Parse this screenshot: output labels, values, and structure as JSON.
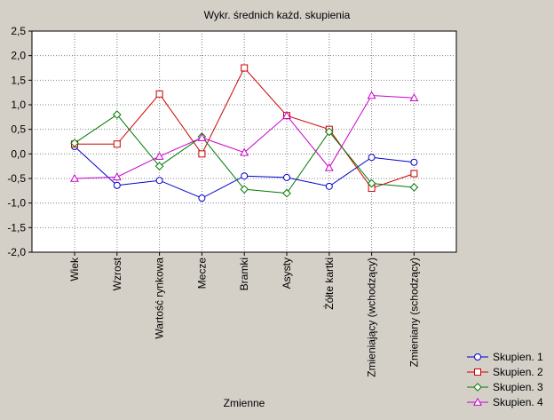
{
  "chart_data": {
    "type": "line",
    "title": "Wykr. średnich każd. skupienia",
    "xlabel": "Zmienne",
    "ylabel": "",
    "ylim": [
      -2.0,
      2.5
    ],
    "yticks": [
      2.5,
      2.0,
      1.5,
      1.0,
      0.5,
      0.0,
      -0.5,
      -1.0,
      -1.5,
      -2.0
    ],
    "ytick_labels": [
      "2,5",
      "2,0",
      "1,5",
      "1,0",
      "0,5",
      "0,0",
      "-0,5",
      "-1,0",
      "-1,5",
      "-2,0"
    ],
    "grid": true,
    "legend_position": "bottom-right",
    "categories": [
      "Wiek",
      "Wzrost",
      "Wartość rynkowa",
      "Mecze",
      "Bramki",
      "Asysty",
      "Żółte kartki",
      "Zmieniający (wchodzący)",
      "Zmieniany (schodzący)"
    ],
    "series": [
      {
        "name": "Skupien. 1",
        "color": "#0000cc",
        "marker": "circle",
        "values": [
          0.15,
          -0.64,
          -0.54,
          -0.9,
          -0.45,
          -0.48,
          -0.66,
          -0.07,
          -0.17
        ]
      },
      {
        "name": "Skupien. 2",
        "color": "#cc0000",
        "marker": "square",
        "values": [
          0.2,
          0.2,
          1.22,
          0.0,
          1.75,
          0.78,
          0.5,
          -0.7,
          -0.4
        ]
      },
      {
        "name": "Skupien. 3",
        "color": "#007a00",
        "marker": "diamond",
        "values": [
          0.22,
          0.8,
          -0.25,
          0.35,
          -0.72,
          -0.8,
          0.45,
          -0.6,
          -0.68
        ]
      },
      {
        "name": "Skupien. 4",
        "color": "#cc00cc",
        "marker": "triangle",
        "values": [
          -0.5,
          -0.47,
          -0.05,
          0.33,
          0.03,
          0.78,
          -0.28,
          1.19,
          1.14
        ]
      }
    ]
  }
}
